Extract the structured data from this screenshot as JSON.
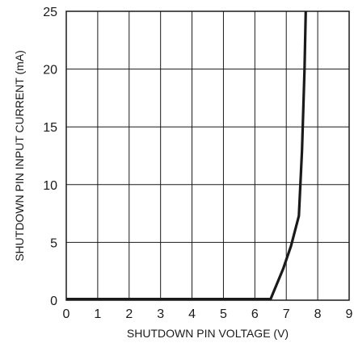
{
  "chart_data": {
    "type": "line",
    "title": "",
    "xlabel": "SHUTDOWN PIN VOLTAGE (V)",
    "ylabel": "SHUTDOWN PIN INPUT CURRENT (mA)",
    "xlim": [
      0,
      9
    ],
    "ylim": [
      0,
      25
    ],
    "xticks": [
      0,
      1,
      2,
      3,
      4,
      5,
      6,
      7,
      8,
      9
    ],
    "yticks": [
      0,
      5,
      10,
      15,
      20,
      25
    ],
    "grid": true,
    "legend": "none",
    "series": [
      {
        "color": "#1a1a1a",
        "x": [
          0,
          6.5,
          6.9,
          7.15,
          7.4,
          7.5,
          7.58,
          7.62
        ],
        "y": [
          0.1,
          0.1,
          2.7,
          4.7,
          7.3,
          13,
          20,
          25
        ]
      }
    ]
  }
}
